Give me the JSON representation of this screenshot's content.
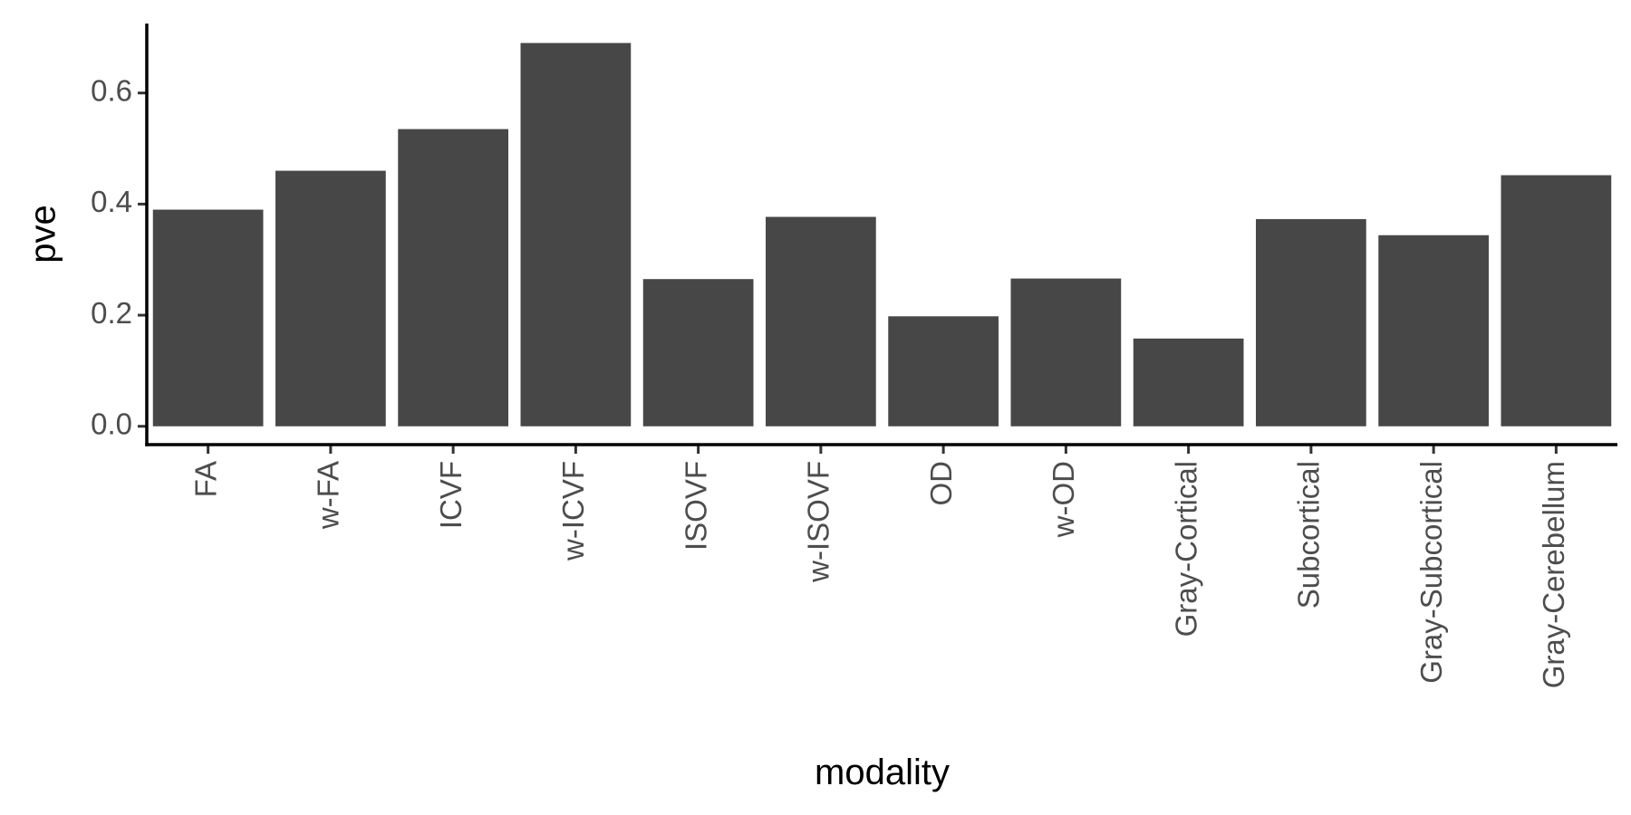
{
  "chart_data": {
    "type": "bar",
    "title": "",
    "xlabel": "modality",
    "ylabel": "pve",
    "categories": [
      "FA",
      "w-FA",
      "ICVF",
      "w-ICVF",
      "ISOVF",
      "w-ISOVF",
      "OD",
      "w-OD",
      "Gray-Cortical",
      "Subcortical",
      "Gray-Subcortical",
      "Gray-Cerebellum"
    ],
    "values": [
      0.39,
      0.46,
      0.535,
      0.69,
      0.265,
      0.377,
      0.198,
      0.266,
      0.158,
      0.373,
      0.344,
      0.452
    ],
    "ylim": [
      -0.033,
      0.725
    ],
    "yticks": [
      "0.0",
      "0.2",
      "0.4",
      "0.6"
    ],
    "grid": false,
    "bar_color": "#474747"
  }
}
